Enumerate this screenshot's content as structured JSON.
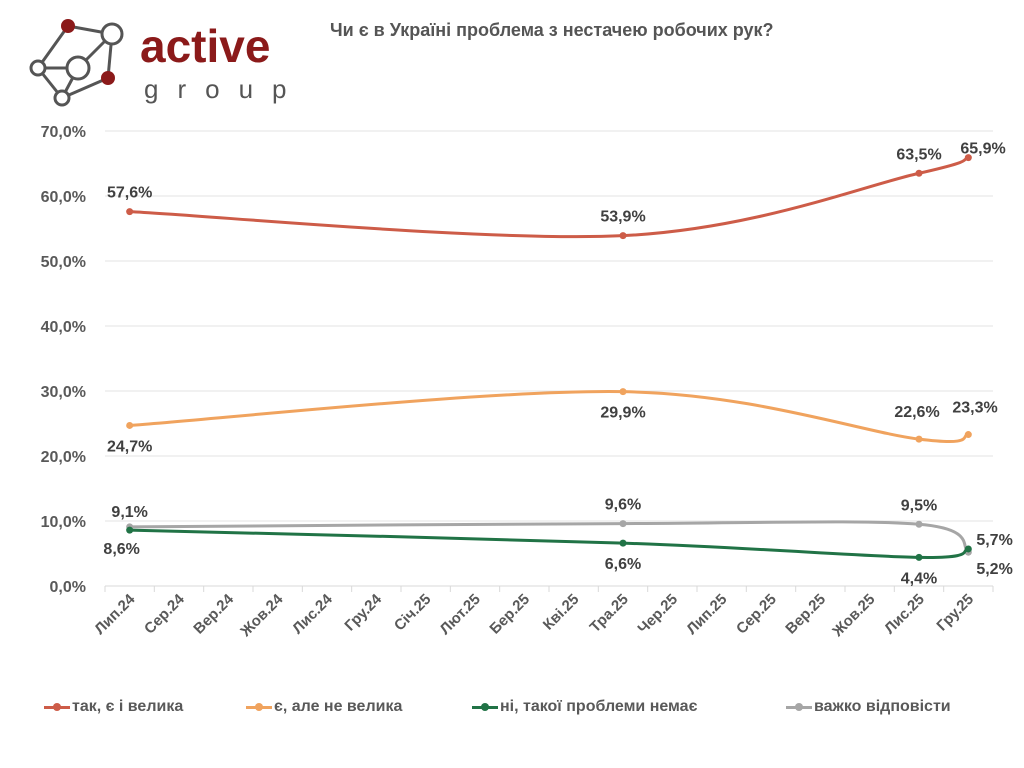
{
  "logo": {
    "brand_word": "active",
    "brand_sub": "group",
    "colors": {
      "red": "#8b1a1a",
      "gray": "#555555"
    }
  },
  "chart_data": {
    "type": "line",
    "title": "Чи є в Україні проблема з нестачею робочих рук?",
    "xlabel": "",
    "ylabel": "",
    "categories": [
      "Лип.24",
      "Сер.24",
      "Вер.24",
      "Жов.24",
      "Лис.24",
      "Гру.24",
      "Січ.25",
      "Лют.25",
      "Бер.25",
      "Кві.25",
      "Тра.25",
      "Чер.25",
      "Лип.25",
      "Сер.25",
      "Вер.25",
      "Жов.25",
      "Лис.25",
      "Гру.25"
    ],
    "y_ticks": [
      "0,0%",
      "10,0%",
      "20,0%",
      "30,0%",
      "40,0%",
      "50,0%",
      "60,0%",
      "70,0%"
    ],
    "ylim": [
      0,
      70
    ],
    "grid": true,
    "smooth": true,
    "legend_position": "bottom",
    "series": [
      {
        "name": "так, є і велика",
        "color": "#cd5c48",
        "points": [
          {
            "category": "Лип.24",
            "value": 57.6,
            "label": "57,6%",
            "label_pos": "above"
          },
          {
            "category": "Тра.25",
            "value": 53.9,
            "label": "53,9%",
            "label_pos": "above"
          },
          {
            "category": "Лис.25",
            "value": 63.5,
            "label": "63,5%",
            "label_pos": "above"
          },
          {
            "category": "Гру.25",
            "value": 65.9,
            "label": "65,9%",
            "label_pos": "above-right"
          }
        ]
      },
      {
        "name": "є, але не велика",
        "color": "#f0a35e",
        "points": [
          {
            "category": "Лип.24",
            "value": 24.7,
            "label": "24,7%",
            "label_pos": "below"
          },
          {
            "category": "Тра.25",
            "value": 29.9,
            "label": "29,9%",
            "label_pos": "below"
          },
          {
            "category": "Лис.25",
            "value": 22.6,
            "label": "22,6%",
            "label_pos": "above"
          },
          {
            "category": "Гру.25",
            "value": 23.3,
            "label": "23,3%",
            "label_pos": "above-right"
          }
        ]
      },
      {
        "name": "ні, такої проблеми немає",
        "color": "#217346",
        "points": [
          {
            "category": "Лип.24",
            "value": 8.6,
            "label": "8,6%",
            "label_pos": "below"
          },
          {
            "category": "Тра.25",
            "value": 6.6,
            "label": "6,6%",
            "label_pos": "below"
          },
          {
            "category": "Лис.25",
            "value": 4.4,
            "label": "4,4%",
            "label_pos": "below"
          },
          {
            "category": "Гру.25",
            "value": 5.7,
            "label": "5,7%",
            "label_pos": "right-up"
          }
        ]
      },
      {
        "name": "важко відповісти",
        "color": "#a6a6a6",
        "points": [
          {
            "category": "Лип.24",
            "value": 9.1,
            "label": "9,1%",
            "label_pos": "above"
          },
          {
            "category": "Тра.25",
            "value": 9.6,
            "label": "9,6%",
            "label_pos": "above"
          },
          {
            "category": "Лис.25",
            "value": 9.5,
            "label": "9,5%",
            "label_pos": "above"
          },
          {
            "category": "Гру.25",
            "value": 5.2,
            "label": "5,2%",
            "label_pos": "right-down"
          }
        ]
      }
    ]
  }
}
